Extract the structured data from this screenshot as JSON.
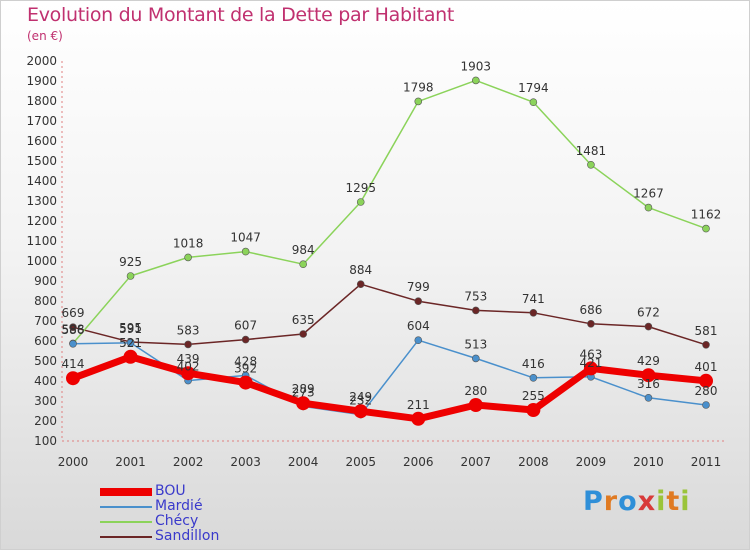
{
  "title": "Evolution du Montant de la Dette par Habitant",
  "subtitle": "(en €)",
  "logo": {
    "letters": [
      {
        "ch": "P",
        "color": "#2f8fd8"
      },
      {
        "ch": "r",
        "color": "#e07a22"
      },
      {
        "ch": "o",
        "color": "#2f8fd8"
      },
      {
        "ch": "x",
        "color": "#d83a3a"
      },
      {
        "ch": "i",
        "color": "#9ac43a"
      },
      {
        "ch": "t",
        "color": "#e07a22"
      },
      {
        "ch": "i",
        "color": "#9ac43a"
      }
    ]
  },
  "chart_data": {
    "type": "line",
    "x": [
      "2000",
      "2001",
      "2002",
      "2003",
      "2004",
      "2005",
      "2006",
      "2007",
      "2008",
      "2009",
      "2010",
      "2011"
    ],
    "ylim": [
      100,
      2000
    ],
    "yticks": [
      100,
      200,
      300,
      400,
      500,
      600,
      700,
      800,
      900,
      1000,
      1100,
      1200,
      1300,
      1400,
      1500,
      1600,
      1700,
      1800,
      1900,
      2000
    ],
    "grid": false,
    "legend_position": "bottom-left",
    "series": [
      {
        "name": "BOU",
        "color": "#ee0000",
        "values": [
          414,
          521,
          439,
          392,
          289,
          249,
          211,
          280,
          255,
          463,
          429,
          401
        ]
      },
      {
        "name": "Mardié",
        "color": "#4a90cc",
        "values": [
          586,
          591,
          402,
          428,
          273,
          232,
          604,
          513,
          416,
          421,
          316,
          280
        ]
      },
      {
        "name": "Chécy",
        "color": "#8bd35a",
        "values": [
          588,
          925,
          1018,
          1047,
          984,
          1295,
          1798,
          1903,
          1794,
          1481,
          1267,
          1162
        ]
      },
      {
        "name": "Sandillon",
        "color": "#6b2626",
        "values": [
          669,
          595,
          583,
          607,
          635,
          884,
          799,
          753,
          741,
          686,
          672,
          581
        ]
      }
    ]
  }
}
